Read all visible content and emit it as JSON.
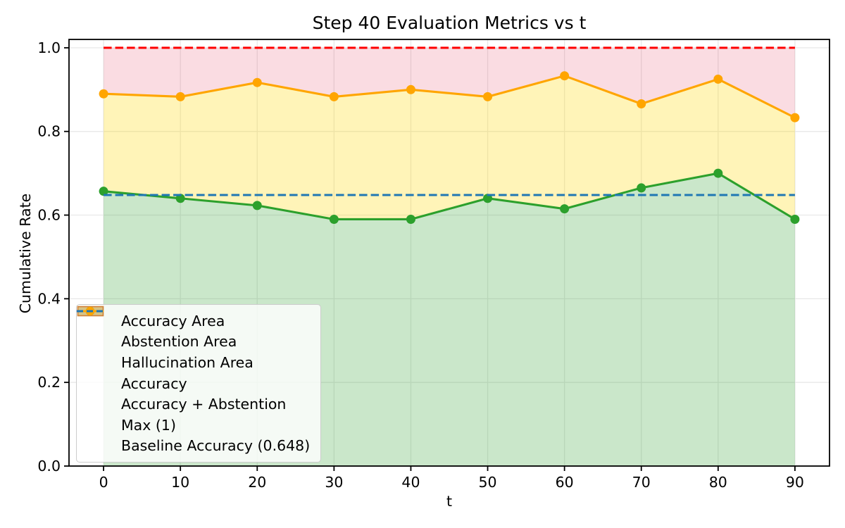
{
  "chart_data": {
    "type": "line",
    "title": "Step 40 Evaluation Metrics vs t",
    "xlabel": "t",
    "ylabel": "Cumulative Rate",
    "x": [
      0,
      10,
      20,
      30,
      40,
      50,
      60,
      70,
      80,
      90
    ],
    "xlim": [
      -4.5,
      94.5
    ],
    "ylim": [
      0,
      1.02
    ],
    "xticks": {
      "values": [
        0,
        10,
        20,
        30,
        40,
        50,
        60,
        70,
        80,
        90
      ],
      "labels": [
        "0",
        "10",
        "20",
        "30",
        "40",
        "50",
        "60",
        "70",
        "80",
        "90"
      ]
    },
    "yticks": {
      "values": [
        0.0,
        0.2,
        0.4,
        0.6,
        0.8,
        1.0
      ],
      "labels": [
        "0.0",
        "0.2",
        "0.4",
        "0.6",
        "0.8",
        "1.0"
      ]
    },
    "grid": true,
    "grid_color": "#e8e8e8",
    "series": [
      {
        "name": "Accuracy",
        "color": "#2ca02c",
        "style": "solid",
        "marker": "circle",
        "values": [
          0.657,
          0.64,
          0.623,
          0.59,
          0.59,
          0.64,
          0.615,
          0.665,
          0.7,
          0.59
        ]
      },
      {
        "name": "Accuracy + Abstention",
        "color": "#ffa500",
        "style": "solid",
        "marker": "circle",
        "values": [
          0.89,
          0.883,
          0.917,
          0.883,
          0.9,
          0.883,
          0.933,
          0.866,
          0.925,
          0.833
        ]
      },
      {
        "name": "Max (1)",
        "color": "#ff0000",
        "style": "dashed",
        "constant": 1.0
      },
      {
        "name": "Baseline Accuracy (0.648)",
        "color": "#1f77b4",
        "style": "dashed",
        "constant": 0.648
      }
    ],
    "areas": [
      {
        "name": "Accuracy Area",
        "color": "#2ca02c",
        "alpha": 0.25,
        "from": "zero",
        "to": "Accuracy"
      },
      {
        "name": "Abstention Area",
        "color": "#ffd700",
        "alpha": 0.28,
        "from": "Accuracy",
        "to": "Accuracy + Abstention"
      },
      {
        "name": "Hallucination Area",
        "color": "#dc143c",
        "alpha": 0.15,
        "from": "Accuracy + Abstention",
        "to": "one"
      }
    ],
    "legend": {
      "position": "lower left",
      "items": [
        {
          "label": "Accuracy Area",
          "swatch": "patch",
          "color": "#2ca02c",
          "alpha": 0.25
        },
        {
          "label": "Abstention Area",
          "swatch": "patch",
          "color": "#ffd700",
          "alpha": 0.28
        },
        {
          "label": "Hallucination Area",
          "swatch": "patch",
          "color": "#dc143c",
          "alpha": 0.15
        },
        {
          "label": "Accuracy",
          "swatch": "line-marker",
          "color": "#2ca02c"
        },
        {
          "label": "Accuracy + Abstention",
          "swatch": "line-marker",
          "color": "#ffa500"
        },
        {
          "label": "Max (1)",
          "swatch": "dashed-line",
          "color": "#ff0000"
        },
        {
          "label": "Baseline Accuracy (0.648)",
          "swatch": "dashed-line",
          "color": "#1f77b4"
        }
      ]
    }
  }
}
